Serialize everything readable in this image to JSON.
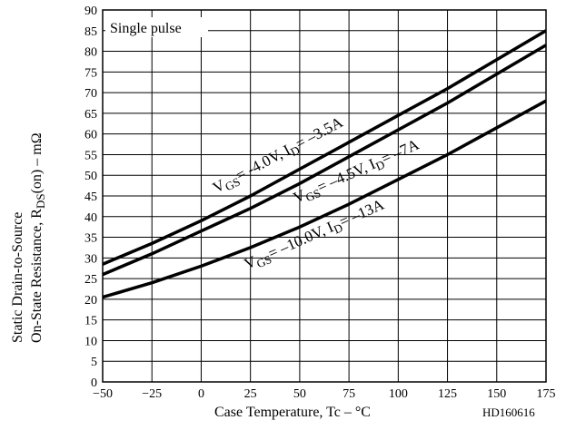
{
  "chart_data": {
    "type": "line",
    "title": "",
    "xlabel": "Case Temperature, Tc  –  °C",
    "ylabel_line1": "Static Drain-to-Source",
    "ylabel_line2": "On-State Resistance, R",
    "ylabel_sub": "DS",
    "ylabel_unit": "(on)  –  mΩ",
    "xlim": [
      -50,
      175
    ],
    "ylim": [
      0,
      90
    ],
    "x_ticks": [
      -50,
      -25,
      0,
      25,
      50,
      75,
      100,
      125,
      150,
      175
    ],
    "x_tick_labels": [
      "−50",
      "−25",
      "0",
      "25",
      "50",
      "75",
      "100",
      "125",
      "150",
      "175"
    ],
    "y_ticks": [
      0,
      5,
      10,
      15,
      20,
      25,
      30,
      35,
      40,
      45,
      50,
      55,
      60,
      65,
      70,
      75,
      80,
      85,
      90
    ],
    "grid": true,
    "annotation": "Single pulse",
    "code_label": "HD160616",
    "series": [
      {
        "label_parts": [
          "V",
          "GS",
          "= -4.0V, I",
          "D",
          "= –3.5A"
        ],
        "x": [
          -50,
          -25,
          0,
          25,
          50,
          75,
          100,
          125,
          150,
          175
        ],
        "values": [
          28.5,
          33.5,
          39,
          45,
          51.5,
          58,
          64.5,
          71,
          78,
          85
        ]
      },
      {
        "label_parts": [
          "V",
          "GS",
          "= –4.5V, I",
          "D",
          "= –7A"
        ],
        "x": [
          -50,
          -25,
          0,
          25,
          50,
          75,
          100,
          125,
          150,
          175
        ],
        "values": [
          26,
          31,
          36.5,
          42,
          48,
          54.5,
          61,
          67.5,
          74.5,
          81.5
        ]
      },
      {
        "label_parts": [
          "V",
          "GS",
          "= –10.0V, I",
          "D",
          "= –13A"
        ],
        "x": [
          -50,
          -25,
          0,
          25,
          50,
          75,
          100,
          125,
          150,
          175
        ],
        "values": [
          20.5,
          24,
          28,
          32.5,
          37.5,
          43,
          49,
          55,
          61.5,
          68
        ]
      }
    ]
  }
}
